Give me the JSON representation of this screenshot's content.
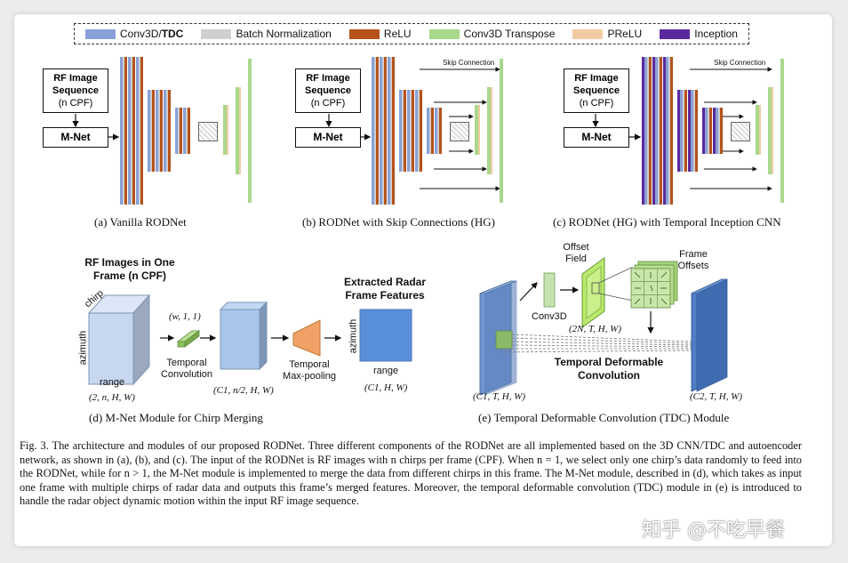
{
  "legend": {
    "items": [
      {
        "label": "Conv3D/",
        "label_bold": "TDC",
        "color": "#8aa0d8"
      },
      {
        "label": "Batch Normalization",
        "label_bold": "",
        "color": "#cfcfcf"
      },
      {
        "label": "ReLU",
        "label_bold": "",
        "color": "#b5521b"
      },
      {
        "label": "Conv3D Transpose",
        "label_bold": "",
        "color": "#a8d88c"
      },
      {
        "label": "PReLU",
        "label_bold": "",
        "color": "#f2cba5"
      },
      {
        "label": "Inception",
        "label_bold": "",
        "color": "#5a2a9c"
      }
    ]
  },
  "panel_a": {
    "input_title": "RF Image Sequence",
    "input_sub": "(n CPF)",
    "mnet": "M-Net",
    "caption": "(a) Vanilla RODNet"
  },
  "panel_b": {
    "input_title": "RF Image Sequence",
    "input_sub": "(n CPF)",
    "mnet": "M-Net",
    "skip_label": "Skip Connection",
    "caption": "(b) RODNet with Skip Connections (HG)"
  },
  "panel_c": {
    "input_title": "RF Image Sequence",
    "input_sub": "(n CPF)",
    "mnet": "M-Net",
    "skip_label": "Skip Connection",
    "caption": "(c) RODNet (HG) with Temporal Inception CNN"
  },
  "panel_d": {
    "title": "RF Images in One Frame (n CPF)",
    "chirp": "chirp",
    "azimuth": "azimuth",
    "range": "range",
    "input_dims": "(2, n, H, W)",
    "kernel_dims": "(w, 1, 1)",
    "temporal_conv": "Temporal Convolution",
    "mid_dims": "(C1, n/2, H, W)",
    "maxpool": "Temporal Max-pooling",
    "output_title": "Extracted Radar Frame Features",
    "out_azimuth": "azimuth",
    "out_range": "range",
    "output_dims": "(C1, H, W)",
    "caption": "(d) M-Net Module for Chirp Merging"
  },
  "panel_e": {
    "offset_field": "Offset Field",
    "frame_offsets": "Frame Offsets",
    "conv3d": "Conv3D",
    "offset_dims": "(2N, T, H, W)",
    "tdc_label": "Temporal Deformable Convolution",
    "input_dims": "(C1, T, H, W)",
    "output_dims": "(C2, T, H, W)",
    "caption": "(e) Temporal Deformable Convolution (TDC) Module"
  },
  "figure_caption": "Fig. 3.    The architecture and modules of our proposed RODNet. Three different components of the RODNet are all implemented based on the 3D CNN/TDC and autoencoder network, as shown in (a), (b), and (c). The input of the RODNet is RF images with n chirps per frame (CPF). When n = 1, we select only one chirp’s data randomly to feed into the RODNet, while for n > 1, the M-Net module is implemented to merge the data from different chirps in this frame. The M-Net module, described in (d), which takes as input one frame with multiple chirps of radar data and outputs this frame’s merged features. Moreover, the temporal deformable convolution (TDC) module in (e) is introduced to handle the radar object dynamic motion within the input RF image sequence.",
  "watermark": "知乎 @不吃早餐"
}
